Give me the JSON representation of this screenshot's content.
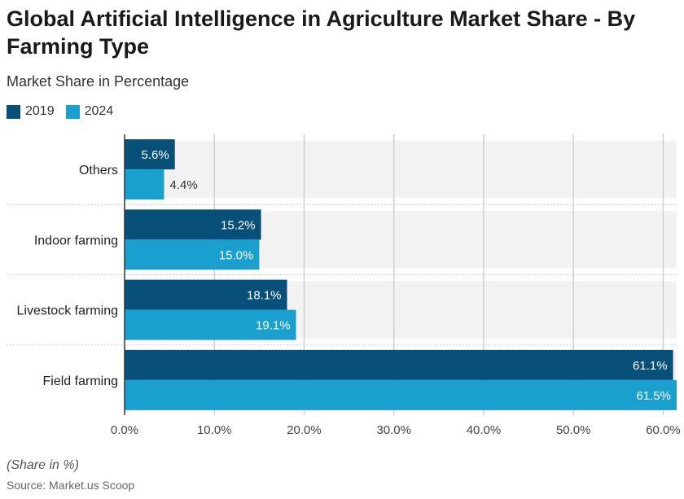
{
  "title": "Global Artificial Intelligence in Agriculture Market Share - By Farming Type",
  "subtitle": "Market Share in Percentage",
  "footnote": "(Share in %)",
  "source": "Source: Market.us Scoop",
  "colors": {
    "series_2019": "#08507a",
    "series_2024": "#1aa0cf",
    "band": "#f2f2f2",
    "grid": "#d0d0d0"
  },
  "chart_data": {
    "type": "bar",
    "orientation": "horizontal",
    "categories": [
      "Others",
      "Indoor farming",
      "Livestock farming",
      "Field farming"
    ],
    "series": [
      {
        "name": "2019",
        "values": [
          5.6,
          15.2,
          18.1,
          61.1
        ],
        "labels": [
          "5.6%",
          "15.2%",
          "18.1%",
          "61.1%"
        ]
      },
      {
        "name": "2024",
        "values": [
          4.4,
          15.0,
          19.1,
          61.5
        ],
        "labels": [
          "4.4%",
          "15.0%",
          "19.1%",
          "61.5%"
        ]
      }
    ],
    "xlim": [
      0,
      61.5
    ],
    "xticks": [
      0,
      10,
      20,
      30,
      40,
      50,
      60
    ],
    "xtick_labels": [
      "0.0%",
      "10.0%",
      "20.0%",
      "30.0%",
      "40.0%",
      "50.0%",
      "60.0%"
    ],
    "legend_position": "top-left",
    "grid": true
  }
}
